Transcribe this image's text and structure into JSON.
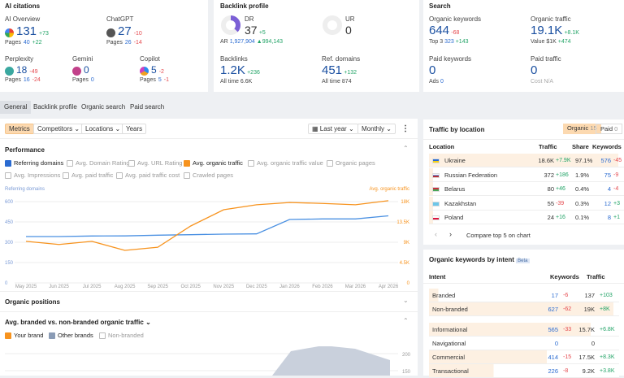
{
  "ai_citations": {
    "title": "AI citations",
    "items": [
      {
        "name": "AI Overview",
        "value": "131",
        "delta": "+73",
        "pages_label": "Pages",
        "pages": "40",
        "pages_delta": "+22",
        "icon": "google-icon"
      },
      {
        "name": "ChatGPT",
        "value": "27",
        "delta": "-10",
        "pages_label": "Pages",
        "pages": "26",
        "pages_delta": "-14",
        "icon": "chatgpt-icon"
      },
      {
        "name": "Perplexity",
        "value": "18",
        "delta": "-49",
        "pages_label": "Pages",
        "pages": "16",
        "pages_delta": "-24",
        "icon": "perplexity-icon"
      },
      {
        "name": "Gemini",
        "value": "0",
        "delta": "",
        "pages_label": "Pages",
        "pages": "0",
        "pages_delta": "",
        "icon": "gemini-icon"
      },
      {
        "name": "Copilot",
        "value": "5",
        "delta": "-2",
        "pages_label": "Pages",
        "pages": "5",
        "pages_delta": "-1",
        "icon": "copilot-icon"
      }
    ]
  },
  "backlink_profile": {
    "title": "Backlink profile",
    "dr_label": "DR",
    "dr": "37",
    "dr_delta": "+5",
    "dr_fill": 37,
    "ur_label": "UR",
    "ur": "0",
    "ar_label": "AR",
    "ar": "1,927,904",
    "ar_delta": "▲994,143",
    "backlinks_label": "Backlinks",
    "backlinks": "1.2K",
    "backlinks_delta": "+236",
    "backlinks_all_label": "All time",
    "backlinks_all": "6.6K",
    "refdomains_label": "Ref. domains",
    "refdomains": "451",
    "refdomains_delta": "+132",
    "refdomains_all_label": "All time",
    "refdomains_all": "874"
  },
  "search": {
    "title": "Search",
    "ok_label": "Organic keywords",
    "ok": "644",
    "ok_delta": "-68",
    "top3_label": "Top 3",
    "top3": "323",
    "top3_delta": "+143",
    "ot_label": "Organic traffic",
    "ot": "19.1K",
    "ot_delta": "+8.1K",
    "value_label": "Value",
    "value": "$1K",
    "value_delta": "+474",
    "pk_label": "Paid keywords",
    "pk": "0",
    "ads_label": "Ads",
    "ads": "0",
    "pt_label": "Paid traffic",
    "pt": "0",
    "cost_label": "Cost",
    "cost": "N/A"
  },
  "tabs": [
    "General",
    "Backlink profile",
    "Organic search",
    "Paid search"
  ],
  "toolbar": {
    "metrics": "Metrics",
    "competitors": "Competitors",
    "locations": "Locations",
    "years": "Years",
    "period": "Last year",
    "interval": "Monthly"
  },
  "performance": {
    "title": "Performance",
    "options": [
      {
        "label": "Referring domains",
        "checked": true
      },
      {
        "label": "Avg. Domain Rating",
        "checked": false
      },
      {
        "label": "Avg. URL Rating",
        "checked": false
      },
      {
        "label": "Avg. organic traffic",
        "checked": true
      },
      {
        "label": "Avg. organic traffic value",
        "checked": false
      },
      {
        "label": "Organic pages",
        "checked": false
      },
      {
        "label": "Avg. Impressions",
        "checked": false
      },
      {
        "label": "Avg. paid traffic",
        "checked": false
      },
      {
        "label": "Avg. paid traffic cost",
        "checked": false
      },
      {
        "label": "Crawled pages",
        "checked": false
      }
    ]
  },
  "chart_data": [
    {
      "type": "line",
      "left_label": "Referring domains",
      "right_label": "Avg. organic traffic",
      "categories": [
        "May 2025",
        "Jun 2025",
        "Jul 2025",
        "Aug 2025",
        "Sep 2025",
        "Oct 2025",
        "Nov 2025",
        "Dec 2025",
        "Jan 2026",
        "Feb 2026",
        "Mar 2026",
        "Apr 2026"
      ],
      "left_ticks": [
        "0",
        "150",
        "300",
        "450",
        "600"
      ],
      "right_ticks": [
        "0",
        "4.5K",
        "9K",
        "13.5K",
        "18K"
      ],
      "ylim_left": [
        0,
        600
      ],
      "ylim_right": [
        0,
        18000
      ],
      "grid": true,
      "series": [
        {
          "name": "Referring domains",
          "axis": "left",
          "color": "#4a90e2",
          "values": [
            342,
            342,
            346,
            347,
            352,
            356,
            360,
            362,
            468,
            472,
            472,
            495
          ]
        },
        {
          "name": "Avg. organic traffic",
          "axis": "right",
          "color": "#f7931e",
          "values": [
            9200,
            8500,
            9200,
            7200,
            7900,
            12600,
            16200,
            17300,
            17800,
            17600,
            17300,
            18200
          ]
        }
      ]
    },
    {
      "type": "area",
      "ticks": [
        "150",
        "200"
      ],
      "series": [
        {
          "name": "Other brands",
          "color": "#c9d0dc"
        }
      ]
    }
  ],
  "organic_positions": {
    "title": "Organic positions"
  },
  "branded": {
    "title": "Avg. branded vs. non-branded organic traffic",
    "options": [
      {
        "label": "Your brand",
        "checked": true
      },
      {
        "label": "Other brands",
        "checked": true
      },
      {
        "label": "Non-branded",
        "checked": false
      }
    ]
  },
  "traffic_by_location": {
    "title": "Traffic by location",
    "organic_label": "Organic",
    "organic_count": "15",
    "paid_label": "Paid",
    "paid_count": "0",
    "columns": [
      "Location",
      "Traffic",
      "Share",
      "Keywords"
    ],
    "rows": [
      {
        "country": "Ukraine",
        "traffic": "18.6K",
        "delta": "+7.9K",
        "share": "97.1%",
        "keywords": "576",
        "kdelta": "-45",
        "flag": [
          "#2a6bd1",
          "#f7d117"
        ]
      },
      {
        "country": "Russian Federation",
        "traffic": "372",
        "delta": "+186",
        "share": "1.9%",
        "keywords": "75",
        "kdelta": "-9",
        "flag": [
          "#fff",
          "#1c3fa8",
          "#d52b1e"
        ]
      },
      {
        "country": "Belarus",
        "traffic": "80",
        "delta": "+46",
        "share": "0.4%",
        "keywords": "4",
        "kdelta": "-4",
        "flag": [
          "#c8313e",
          "#4aa657"
        ]
      },
      {
        "country": "Kazakhstan",
        "traffic": "55",
        "delta": "-39",
        "share": "0.3%",
        "keywords": "12",
        "kdelta": "+3",
        "flag": [
          "#6ec6e8",
          "#6ec6e8"
        ]
      },
      {
        "country": "Poland",
        "traffic": "24",
        "delta": "+16",
        "share": "0.1%",
        "keywords": "8",
        "kdelta": "+1",
        "flag": [
          "#fff",
          "#dc143c"
        ]
      }
    ],
    "compare": "Compare top 5 on chart"
  },
  "intent": {
    "title": "Organic keywords by intent",
    "badge": "Beta",
    "columns": [
      "Intent",
      "Keywords",
      "Traffic"
    ],
    "rows": [
      {
        "name": "Branded",
        "kw": "17",
        "kd": "-6",
        "tr": "137",
        "td": "+103",
        "bar": 0.05
      },
      {
        "name": "Non-branded",
        "kw": "627",
        "kd": "-62",
        "tr": "19K",
        "td": "+8K",
        "bar": 0.97
      },
      {
        "name": "Informational",
        "kw": "565",
        "kd": "-33",
        "tr": "15.7K",
        "td": "+6.8K",
        "bar": 0.85
      },
      {
        "name": "Navigational",
        "kw": "0",
        "kd": "",
        "tr": "0",
        "td": "",
        "bar": 0
      },
      {
        "name": "Commercial",
        "kw": "414",
        "kd": "-15",
        "tr": "17.5K",
        "td": "+8.3K",
        "bar": 0.62
      },
      {
        "name": "Transactional",
        "kw": "226",
        "kd": "-8",
        "tr": "9.2K",
        "td": "+3.8K",
        "bar": 0.34
      }
    ]
  }
}
